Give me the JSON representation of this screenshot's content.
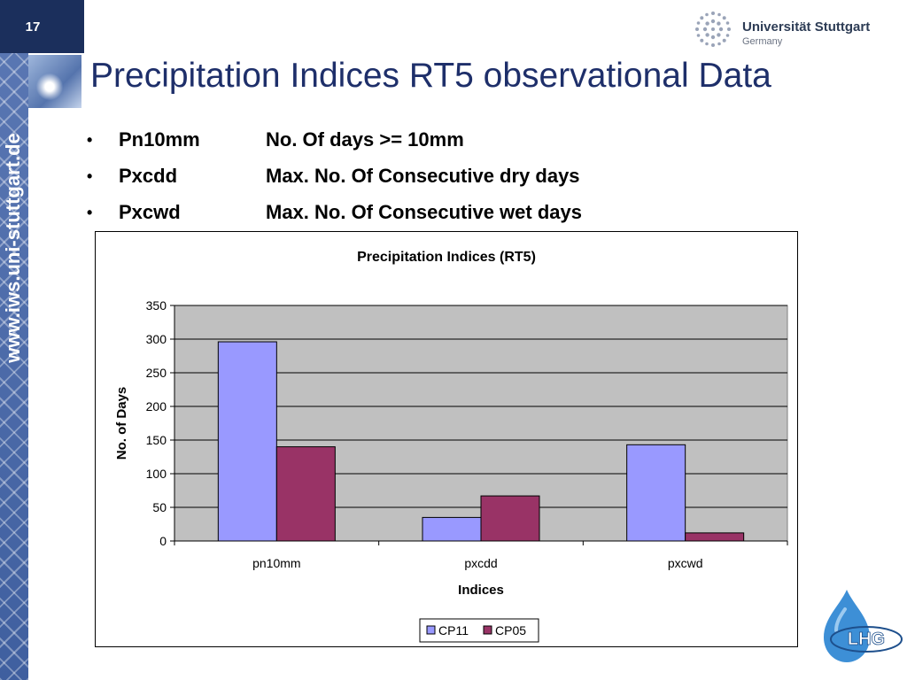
{
  "slide": {
    "page_number": "17",
    "side_url": "www.iws.uni-stuttgart.de",
    "title": "Precipitation Indices RT5 observational Data"
  },
  "logos": {
    "university_name": "Universität Stuttgart",
    "university_country": "Germany",
    "lhg": "LHG"
  },
  "bullets": [
    {
      "abbr": "Pn10mm",
      "desc": "No. Of days >= 10mm"
    },
    {
      "abbr": "Pxcdd",
      "desc": "Max. No. Of Consecutive dry days"
    },
    {
      "abbr": "Pxcwd",
      "desc": "Max. No. Of Consecutive wet days"
    }
  ],
  "bullet_symbol": "•",
  "chart_data": {
    "type": "bar",
    "title": "Precipitation Indices (RT5)",
    "xlabel": "Indices",
    "ylabel": "No. of Days",
    "categories": [
      "pn10mm",
      "pxcdd",
      "pxcwd"
    ],
    "series": [
      {
        "name": "CP11",
        "values": [
          296,
          35,
          143
        ],
        "color": "#9999ff"
      },
      {
        "name": "CP05",
        "values": [
          140,
          67,
          12
        ],
        "color": "#993366"
      }
    ],
    "ylim": [
      0,
      350
    ],
    "yticks": [
      0,
      50,
      100,
      150,
      200,
      250,
      300,
      350
    ],
    "grid": true,
    "plot_background": "#c0c0c0",
    "legend_position": "bottom"
  }
}
